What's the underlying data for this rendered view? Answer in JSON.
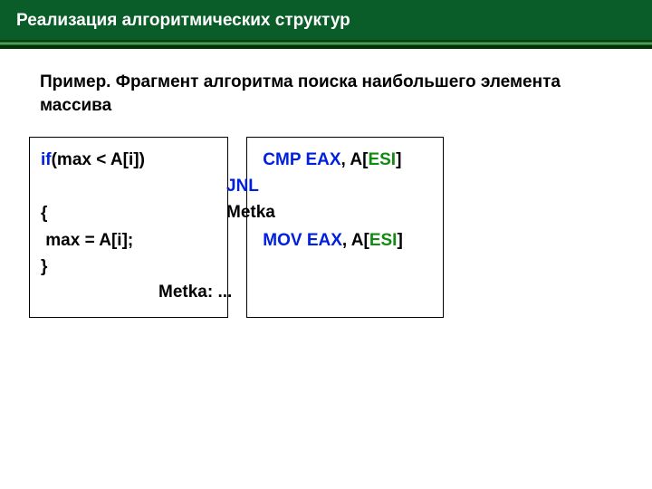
{
  "header": {
    "title": "Реализация алгоритмических структур"
  },
  "subtitle": "Пример. Фрагмент алгоритма поиска наибольшего элемента массива",
  "colors": {
    "header_bg": "#0a5c28",
    "header_text": "#ffffff",
    "body_bg": "#ffffff",
    "text": "#000000",
    "keyword": "#0020e0",
    "register": "#0020e0",
    "esi": "#118a11",
    "border": "#000000"
  },
  "code": {
    "left": {
      "l1_kw": "if",
      "l1_rest": "(max < A[i])",
      "l3": "{",
      "l4": " max = A[i];",
      "l5": "}"
    },
    "jnl": {
      "kw": "JNL",
      "rest": " Metka"
    },
    "right": {
      "l1_pre": " ",
      "l1_op": "CMP",
      "l1_sp": " ",
      "l1_reg": "EAX",
      "l1_mid": ", A[",
      "l1_esi": "ESI",
      "l1_end": "]",
      "l4_pre": " ",
      "l4_op": "MOV",
      "l4_sp": " ",
      "l4_reg": "EAX",
      "l4_mid": ", A[",
      "l4_esi": "ESI",
      "l4_end": "]"
    },
    "metka": "Metka:  ..."
  }
}
